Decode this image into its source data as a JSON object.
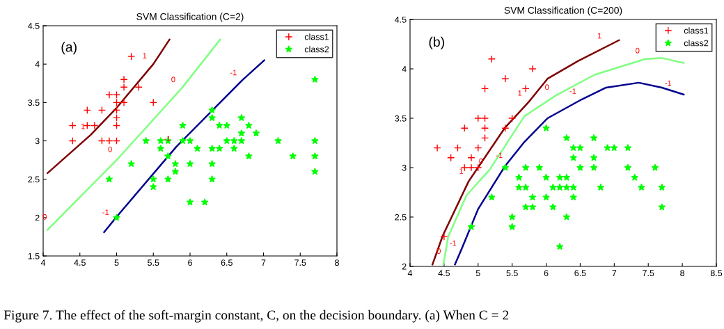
{
  "chart_data": [
    {
      "type": "scatter",
      "title": "SVM Classification (C=2)",
      "xlim": [
        4,
        8
      ],
      "ylim": [
        1.5,
        4.5
      ],
      "xticks": [
        4,
        4.5,
        5,
        5.5,
        6,
        6.5,
        7,
        7.5,
        8
      ],
      "yticks": [
        1.5,
        2,
        2.5,
        3,
        3.5,
        4,
        4.5
      ],
      "grid": false,
      "legend": "top right",
      "annotations": [
        "(a)",
        "Figure 7. The effect of the soft-margin constant, C, on the decision boundary. (a) When C = 2",
        {
          "text": "1",
          "x": 5.5,
          "y": 4.0
        },
        {
          "text": "1",
          "x": 4.66,
          "y": 3.08
        },
        {
          "text": "0",
          "x": 5.89,
          "y": 3.69
        },
        {
          "text": "0",
          "x": 5.03,
          "y": 2.78
        },
        {
          "text": "0",
          "x": 4.14,
          "y": 1.9
        },
        {
          "text": "-1",
          "x": 6.71,
          "y": 3.78
        },
        {
          "text": "-1",
          "x": 5.81,
          "y": 2.92
        },
        {
          "text": "-1",
          "x": 4.97,
          "y": 1.96
        }
      ],
      "series": [
        {
          "name": "class1",
          "color": "#ff0000",
          "marker": "cross",
          "x": [
            5.2,
            5.1,
            5.1,
            5.3,
            4.9,
            5.0,
            5.0,
            5.1,
            5.5,
            4.6,
            4.8,
            5.0,
            5.0,
            4.4,
            4.6,
            4.7,
            5.0,
            4.4,
            4.8,
            4.9,
            5.0
          ],
          "values": [
            4.1,
            3.8,
            3.7,
            3.7,
            3.6,
            3.6,
            3.5,
            3.5,
            3.5,
            3.4,
            3.4,
            3.4,
            3.3,
            3.2,
            3.2,
            3.2,
            3.2,
            3.0,
            3.0,
            3.0,
            3.0
          ]
        },
        {
          "name": "class2",
          "color": "#00ff00",
          "marker": "star",
          "x": [
            7.7,
            6.3,
            6.3,
            6.7,
            5.9,
            6.4,
            6.5,
            6.8,
            6.7,
            6.9,
            5.4,
            5.6,
            5.7,
            5.9,
            6.0,
            6.5,
            6.6,
            6.7,
            7.2,
            7.7,
            5.6,
            6.1,
            6.3,
            6.4,
            6.6,
            5.7,
            6.8,
            7.4,
            7.7,
            5.2,
            5.8,
            6.0,
            6.3,
            5.8,
            7.7,
            4.9,
            5.5,
            5.7,
            6.3,
            5.5,
            6.0,
            6.2,
            5.0
          ],
          "values": [
            3.8,
            3.4,
            3.3,
            3.3,
            3.2,
            3.2,
            3.2,
            3.2,
            3.1,
            3.1,
            3.0,
            3.0,
            3.0,
            3.0,
            3.0,
            3.0,
            3.0,
            3.0,
            3.0,
            3.0,
            2.9,
            2.9,
            2.9,
            2.9,
            2.9,
            2.8,
            2.8,
            2.8,
            2.8,
            2.7,
            2.7,
            2.7,
            2.7,
            2.6,
            2.6,
            2.5,
            2.5,
            2.5,
            2.5,
            2.4,
            2.2,
            2.2,
            2.0
          ]
        },
        {
          "type": "line",
          "color": "#7f0000",
          "x": [
            4.06,
            4.65,
            5.0,
            5.5,
            5.72
          ],
          "values": [
            2.58,
            3.08,
            3.43,
            4.0,
            4.32
          ]
        },
        {
          "type": "line",
          "color": "#80ff80",
          "x": [
            4.06,
            5.03,
            5.89,
            6.41
          ],
          "values": [
            1.84,
            2.78,
            3.69,
            4.32
          ]
        },
        {
          "type": "line",
          "color": "#00008f",
          "x": [
            4.83,
            5.0,
            5.81,
            6.71,
            7.01
          ],
          "values": [
            1.81,
            2.01,
            2.92,
            3.79,
            4.05
          ]
        }
      ]
    },
    {
      "type": "scatter",
      "title": "SVM Classification (C=200)",
      "xlim": [
        4,
        8.5
      ],
      "ylim": [
        2,
        4.5
      ],
      "xticks": [
        4,
        4.5,
        5,
        5.5,
        6,
        6.5,
        7,
        7.5,
        8,
        8.5
      ],
      "yticks": [
        2,
        2.5,
        3,
        3.5,
        4,
        4.5
      ],
      "grid": false,
      "legend": "top right",
      "annotations": [
        "(b)",
        {
          "text": "1",
          "x": 6.91,
          "y": 4.25
        },
        {
          "text": "1",
          "x": 5.74,
          "y": 3.67
        },
        {
          "text": "1",
          "x": 4.88,
          "y": 2.88
        },
        {
          "text": "0",
          "x": 7.47,
          "y": 4.1
        },
        {
          "text": "0",
          "x": 6.14,
          "y": 3.73
        },
        {
          "text": "0",
          "x": 5.17,
          "y": 2.98
        },
        {
          "text": "0",
          "x": 4.55,
          "y": 2.07
        },
        {
          "text": "-1",
          "x": 7.92,
          "y": 3.77
        },
        {
          "text": "-1",
          "x": 6.52,
          "y": 3.69
        },
        {
          "text": "-1",
          "x": 5.44,
          "y": 3.04
        },
        {
          "text": "-1",
          "x": 4.76,
          "y": 2.15
        }
      ],
      "series": [
        {
          "name": "class1",
          "color": "#ff0000",
          "marker": "cross",
          "x": [
            5.2,
            5.8,
            5.4,
            5.1,
            5.7,
            5.0,
            5.1,
            5.5,
            4.8,
            5.1,
            5.4,
            5.1,
            4.4,
            4.7,
            5.0,
            4.6,
            4.9,
            4.8,
            4.9,
            5.0,
            4.5
          ],
          "values": [
            4.1,
            4.0,
            3.9,
            3.8,
            3.8,
            3.5,
            3.5,
            3.5,
            3.4,
            3.4,
            3.4,
            3.3,
            3.2,
            3.2,
            3.2,
            3.1,
            3.1,
            3.0,
            3.0,
            3.0,
            2.3
          ]
        },
        {
          "name": "class2",
          "color": "#00ff00",
          "marker": "star",
          "x": [
            6.0,
            6.3,
            6.7,
            6.4,
            6.5,
            6.9,
            7.0,
            7.2,
            6.4,
            6.7,
            5.4,
            5.7,
            5.9,
            6.5,
            6.7,
            7.2,
            7.6,
            5.6,
            6.0,
            6.2,
            6.3,
            7.3,
            5.6,
            5.7,
            6.1,
            6.2,
            6.3,
            6.4,
            6.8,
            7.4,
            7.7,
            5.2,
            5.8,
            6.0,
            6.4,
            5.7,
            5.8,
            6.1,
            7.7,
            5.5,
            6.3,
            4.9,
            5.5,
            6.2
          ],
          "values": [
            3.4,
            3.3,
            3.3,
            3.2,
            3.2,
            3.2,
            3.2,
            3.2,
            3.1,
            3.1,
            3.0,
            3.0,
            3.0,
            3.0,
            3.0,
            3.0,
            3.0,
            2.9,
            2.9,
            2.9,
            2.9,
            2.9,
            2.8,
            2.8,
            2.8,
            2.8,
            2.8,
            2.8,
            2.8,
            2.8,
            2.8,
            2.7,
            2.7,
            2.7,
            2.7,
            2.6,
            2.6,
            2.6,
            2.6,
            2.5,
            2.5,
            2.4,
            2.4,
            2.2
          ]
        },
        {
          "type": "line",
          "color": "#7f0000",
          "x": [
            4.33,
            4.48,
            4.86,
            5.39,
            5.75,
            6.02,
            6.47,
            7.07
          ],
          "values": [
            2.02,
            2.31,
            2.86,
            3.4,
            3.67,
            3.9,
            4.08,
            4.29
          ]
        },
        {
          "type": "line",
          "color": "#80ff80",
          "x": [
            4.49,
            4.56,
            4.83,
            5.17,
            5.68,
            6.14,
            6.71,
            7.46,
            7.7,
            8.02
          ],
          "values": [
            2.02,
            2.3,
            2.72,
            2.98,
            3.52,
            3.73,
            3.94,
            4.1,
            4.11,
            4.06
          ]
        },
        {
          "type": "line",
          "color": "#00008f",
          "x": [
            4.66,
            4.76,
            5.0,
            5.39,
            5.68,
            6.02,
            6.52,
            6.88,
            7.36,
            7.7,
            8.02
          ],
          "values": [
            2.02,
            2.18,
            2.58,
            3.01,
            3.26,
            3.5,
            3.69,
            3.81,
            3.86,
            3.81,
            3.74
          ]
        }
      ]
    }
  ]
}
